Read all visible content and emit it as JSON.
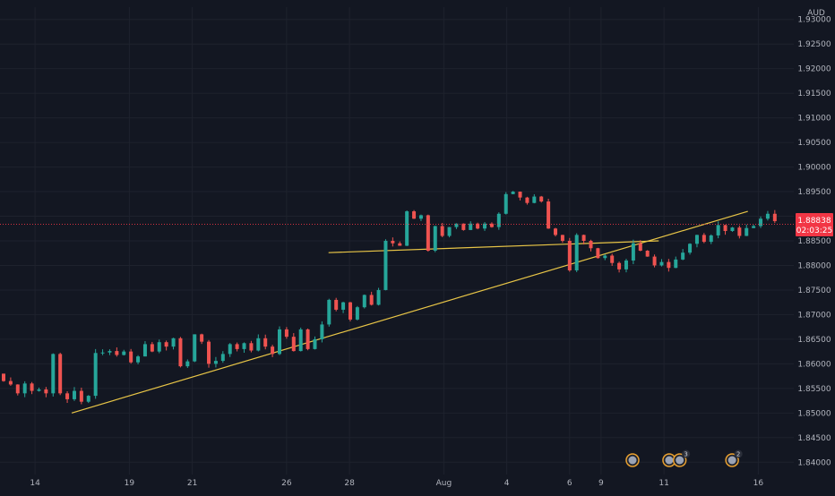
{
  "chart_data": {
    "type": "candlestick",
    "currency_label": "AUD",
    "y_axis": {
      "min": 1.8375,
      "max": 1.9325,
      "ticks": [
        "1.93000",
        "1.92500",
        "1.92000",
        "1.91500",
        "1.91000",
        "1.90500",
        "1.90000",
        "1.89500",
        "1.89000",
        "1.88500",
        "1.88000",
        "1.87500",
        "1.87000",
        "1.86500",
        "1.86000",
        "1.85500",
        "1.85000",
        "1.84500",
        "1.84000"
      ],
      "tick_values": [
        1.93,
        1.925,
        1.92,
        1.915,
        1.91,
        1.905,
        1.9,
        1.895,
        1.89,
        1.885,
        1.88,
        1.875,
        1.87,
        1.865,
        1.86,
        1.855,
        1.85,
        1.845,
        1.84
      ]
    },
    "x_axis": {
      "ticks": [
        {
          "label": "14",
          "bar": 4
        },
        {
          "label": "19",
          "bar": 16
        },
        {
          "label": "21",
          "bar": 24
        },
        {
          "label": "26",
          "bar": 36
        },
        {
          "label": "28",
          "bar": 44
        },
        {
          "label": "Aug",
          "bar": 56
        },
        {
          "label": "4",
          "bar": 64
        },
        {
          "label": "6",
          "bar": 72
        },
        {
          "label": "9",
          "bar": 76
        },
        {
          "label": "11",
          "bar": 84
        },
        {
          "label": "16",
          "bar": 96
        }
      ]
    },
    "current_price": {
      "value": 1.88838,
      "label": "1.88838",
      "countdown": "02:03:25"
    },
    "price_line_color": "#f23645",
    "up_color": "#26a69a",
    "down_color": "#ef5350",
    "trendline_color": "#e8c547",
    "candles_close": [
      1.8565,
      1.8558,
      1.854,
      1.856,
      1.8545,
      1.8548,
      1.854,
      1.862,
      1.854,
      1.8528,
      1.8545,
      1.8523,
      1.8535,
      1.8622,
      1.8623,
      1.8626,
      1.8618,
      1.8625,
      1.8603,
      1.8615,
      1.864,
      1.8625,
      1.8644,
      1.8635,
      1.8652,
      1.8595,
      1.8605,
      1.866,
      1.8645,
      1.86,
      1.8606,
      1.862,
      1.864,
      1.863,
      1.8642,
      1.8627,
      1.8652,
      1.8635,
      1.862,
      1.867,
      1.8655,
      1.8626,
      1.867,
      1.863,
      1.865,
      1.868,
      1.873,
      1.871,
      1.8725,
      1.869,
      1.8715,
      1.874,
      1.872,
      1.875,
      1.885,
      1.8845,
      1.884,
      1.891,
      1.8895,
      1.8902,
      1.883,
      1.888,
      1.886,
      1.8878,
      1.8885,
      1.8872,
      1.8885,
      1.8875,
      1.8885,
      1.8878,
      1.8905,
      1.8945,
      1.895,
      1.8938,
      1.8927,
      1.894,
      1.893,
      1.8875,
      1.8862,
      1.885,
      1.879,
      1.8862,
      1.885,
      1.8835,
      1.8815,
      1.882,
      1.8805,
      1.8792,
      1.881,
      1.8845,
      1.883,
      1.8818,
      1.88,
      1.8807,
      1.8795,
      1.8812,
      1.8826,
      1.8844,
      1.8862,
      1.8848,
      1.8861,
      1.8882,
      1.887,
      1.8877,
      1.886,
      1.8876,
      1.888,
      1.8895,
      1.8905,
      1.889
    ],
    "candles_open": [
      1.858,
      1.8565,
      1.8558,
      1.854,
      1.856,
      1.8545,
      1.8548,
      1.854,
      1.862,
      1.854,
      1.8528,
      1.8545,
      1.8523,
      1.8535,
      1.8622,
      1.8623,
      1.8626,
      1.8618,
      1.8625,
      1.8603,
      1.8615,
      1.864,
      1.8625,
      1.8644,
      1.8635,
      1.8652,
      1.8595,
      1.8605,
      1.866,
      1.8645,
      1.86,
      1.8606,
      1.862,
      1.864,
      1.863,
      1.8642,
      1.8627,
      1.8652,
      1.8635,
      1.862,
      1.867,
      1.8655,
      1.8626,
      1.867,
      1.863,
      1.865,
      1.868,
      1.873,
      1.871,
      1.8725,
      1.869,
      1.8715,
      1.874,
      1.872,
      1.875,
      1.885,
      1.8845,
      1.884,
      1.891,
      1.8895,
      1.8902,
      1.883,
      1.888,
      1.886,
      1.8878,
      1.8885,
      1.8872,
      1.8885,
      1.8875,
      1.8885,
      1.8878,
      1.8905,
      1.8945,
      1.895,
      1.8938,
      1.8927,
      1.894,
      1.893,
      1.8875,
      1.8862,
      1.885,
      1.879,
      1.8862,
      1.885,
      1.8835,
      1.8815,
      1.882,
      1.8805,
      1.8792,
      1.881,
      1.8845,
      1.883,
      1.8818,
      1.88,
      1.8807,
      1.8795,
      1.8812,
      1.8826,
      1.8844,
      1.8862,
      1.8848,
      1.8861,
      1.8882,
      1.887,
      1.8877,
      1.886,
      1.8876,
      1.888,
      1.8895,
      1.8905
    ],
    "trendlines": [
      {
        "name": "rising-support",
        "from": {
          "bar": 13,
          "price": 1.85
        },
        "to": {
          "bar": 142,
          "price": 1.891
        }
      },
      {
        "name": "horizontal-neckline",
        "from": {
          "bar": 62,
          "price": 1.8826
        },
        "to": {
          "bar": 125,
          "price": 1.885
        }
      }
    ],
    "event_markers": [
      {
        "kind": "flag",
        "bar": 120,
        "badge": ""
      },
      {
        "kind": "flag",
        "bar": 127,
        "badge": ""
      },
      {
        "kind": "flag",
        "bar": 129,
        "badge": "3"
      },
      {
        "kind": "flag",
        "bar": 139,
        "badge": "2"
      }
    ]
  }
}
